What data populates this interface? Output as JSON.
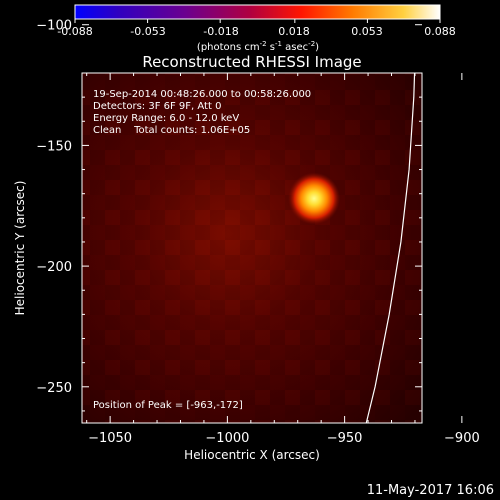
{
  "colorbar": {
    "ticks": [
      "-0.088",
      "-0.053",
      "-0.018",
      "0.018",
      "0.053",
      "0.088"
    ],
    "tick_values": [
      -0.088,
      -0.053,
      -0.018,
      0.018,
      0.053,
      0.088
    ],
    "range": [
      -0.088,
      0.088
    ],
    "units_prefix": "(photons cm",
    "units_exp1": "-2",
    "units_mid1": " s",
    "units_exp2": "-1",
    "units_mid2": " asec",
    "units_exp3": "-2",
    "units_suffix": ")",
    "colors": [
      "#0000ff",
      "#5000b4",
      "#a00080",
      "#ff0000",
      "#ff8000",
      "#ffff60",
      "#ffffff"
    ]
  },
  "chart_data": {
    "type": "heatmap",
    "title": "Reconstructed RHESSI Image",
    "xlabel": "Heliocentric X (arcsec)",
    "ylabel": "Heliocentric Y (arcsec)",
    "xlim": [
      -1062,
      -917
    ],
    "ylim": [
      -265,
      -120
    ],
    "x_ticks": [
      -1050,
      -1000,
      -950,
      -900
    ],
    "y_ticks": [
      -100,
      -150,
      -200,
      -250
    ],
    "x_tick_labels": [
      "−1050",
      "−1000",
      "−950",
      "−900"
    ],
    "y_tick_labels": [
      "−100",
      "−150",
      "−200",
      "−250"
    ],
    "peak": {
      "x": -963,
      "y": -172
    },
    "limb_curve": [
      {
        "x": -919.5,
        "y": -100
      },
      {
        "x": -920.5,
        "y": -130
      },
      {
        "x": -922.5,
        "y": -160
      },
      {
        "x": -926,
        "y": -190
      },
      {
        "x": -931,
        "y": -220
      },
      {
        "x": -937,
        "y": -250
      },
      {
        "x": -941,
        "y": -266
      }
    ],
    "info": {
      "time_range": "19-Sep-2014 00:48:26.000 to 00:58:26.000",
      "detectors": "Detectors: 3F 6F 9F, Att 0",
      "energy_range": "Energy Range: 6.0 - 12.0 keV",
      "method_counts": "Clean    Total counts: 1.06E+05",
      "peak_position": "Position of Peak = [-963,-172]"
    },
    "colors": {
      "limb_line": "#ffffff",
      "background_emission": "#4a0000",
      "source_core": "#ffee55"
    }
  },
  "footer": {
    "date_time": "11-May-2017 16:06"
  }
}
